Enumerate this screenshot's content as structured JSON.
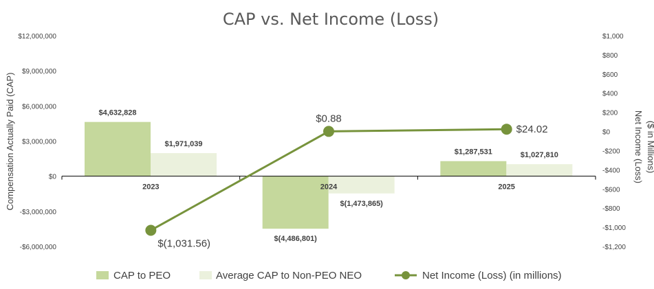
{
  "chart_data": {
    "type": "bar",
    "title": "CAP vs. Net Income (Loss)",
    "categories": [
      "2023",
      "2024",
      "2025"
    ],
    "ylabel": "Compensation Actually Paid (CAP)",
    "y2label_line1": "Net Income (Loss)",
    "y2label_line2": "($ in Millions)",
    "ylim": [
      -6000000,
      12000000
    ],
    "y_ticks": [
      12000000,
      9000000,
      6000000,
      3000000,
      0,
      -3000000,
      -6000000
    ],
    "y_tick_labels": [
      "$12,000,000",
      "$9,000,000",
      "$6,000,000",
      "$3,000,000",
      "$0",
      "-$3,000,000",
      "-$6,000,000"
    ],
    "y2lim": [
      -1200,
      1000
    ],
    "y2_ticks": [
      1000,
      800,
      600,
      400,
      200,
      0,
      -200,
      -400,
      -600,
      -800,
      -1000,
      -1200
    ],
    "y2_tick_labels": [
      "$1,000",
      "$800",
      "$600",
      "$400",
      "$200",
      "$0",
      "-$200",
      "-$400",
      "-$600",
      "-$800",
      "-$1,000",
      "-$1,200"
    ],
    "series": [
      {
        "name": "CAP to PEO",
        "kind": "bar",
        "color": "#c5d89c",
        "values": [
          4632828,
          -4486801,
          1287531
        ],
        "labels": [
          "$4,632,828",
          "$(4,486,801)",
          "$1,287,531"
        ]
      },
      {
        "name": "Average CAP to Non-PEO NEO",
        "kind": "bar",
        "color": "#ebf1dd",
        "values": [
          1971039,
          -1473865,
          1027810
        ],
        "labels": [
          "$1,971,039",
          "$(1,473,865)",
          "$1,027,810"
        ]
      },
      {
        "name": "Net Income (Loss) (in millions)",
        "kind": "line",
        "axis": "right",
        "color": "#77933c",
        "values": [
          -1031.56,
          0.88,
          24.02
        ],
        "labels": [
          "$(1,031.56)",
          "$0.88",
          "$24.02"
        ]
      }
    ],
    "grid": false,
    "legend": "bottom"
  }
}
